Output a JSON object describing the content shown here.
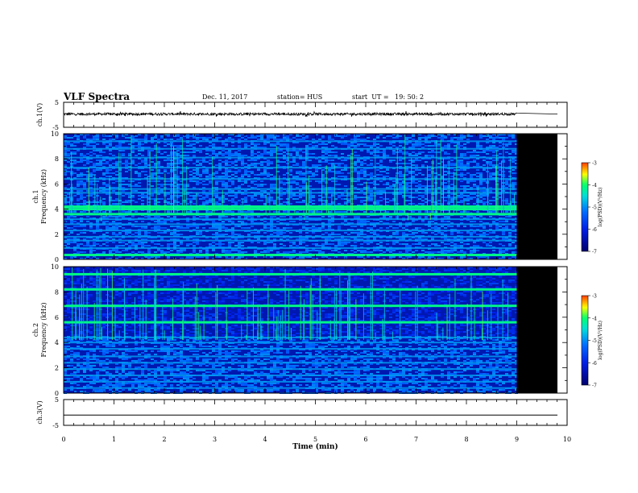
{
  "header": {
    "title": "VLF Spectra",
    "date": "Dec. 11, 2017",
    "station": "station= HUS",
    "start": "start  UT =   19: 50: 2"
  },
  "colorbar": {
    "label": "log(PSD)(V²/Hz)",
    "ticks": [
      "-3",
      "-4",
      "-5",
      "-6",
      "-7"
    ],
    "colors": [
      "#7a0000",
      "#ff0000",
      "#ff9a00",
      "#ffff00",
      "#00ff60",
      "#00e0e0",
      "#0060ff",
      "#0000c0",
      "#00007a"
    ]
  },
  "chart_data": [
    {
      "type": "line",
      "ylabel": "ch.1(V)",
      "ylim": [
        -5,
        5
      ],
      "yticks": [
        "5",
        "-5"
      ],
      "xlim": [
        0,
        10
      ],
      "description_series": "noise trace centered near 0 V until 9 min, flat line afterwards",
      "series": [
        {
          "level_before_9min": 0.3,
          "level_after_9min": 0.3
        }
      ]
    },
    {
      "type": "heatmap",
      "ylabel": "ch.1\nFrequency (kHz)",
      "ylabel_line1": "ch.1",
      "ylabel_line2": "Frequency (kHz)",
      "ylim": [
        0,
        10
      ],
      "yticks": [
        "10",
        "8",
        "6",
        "4",
        "2",
        "0"
      ],
      "xlim": [
        0,
        10
      ],
      "data_end_min": 9.0,
      "no_data_color": "#000000",
      "strong_bands_khz": [
        4.0,
        4.2,
        3.6,
        0.35
      ],
      "weak_bands_khz": [
        0.9,
        1.5,
        1.8,
        2.3,
        2.8,
        3.2,
        5.3,
        5.6,
        6.4,
        7.3,
        8.1,
        8.8,
        9.4
      ]
    },
    {
      "type": "heatmap",
      "ylabel": "ch.2\nFrequency (kHz)",
      "ylabel_line1": "ch.2",
      "ylabel_line2": "Frequency (kHz)",
      "ylim": [
        0,
        10
      ],
      "yticks": [
        "10",
        "8",
        "6",
        "4",
        "2",
        "0"
      ],
      "xlim": [
        0,
        10
      ],
      "data_end_min": 9.0,
      "no_data_color": "#000000",
      "strong_bands_khz": [
        5.6,
        6.9,
        8.2,
        9.4
      ],
      "weak_bands_khz": [
        0.4,
        0.9,
        1.4,
        1.9,
        2.4,
        2.9,
        3.5,
        4.0,
        4.4
      ]
    },
    {
      "type": "line",
      "ylabel": "ch.3(V)",
      "ylim": [
        -5,
        5
      ],
      "yticks": [
        "5",
        "-5"
      ],
      "xlim": [
        0,
        10
      ],
      "xlabel": "Time  (min)",
      "xticks": [
        "0",
        "1",
        "2",
        "3",
        "4",
        "5",
        "6",
        "7",
        "8",
        "9",
        "10"
      ],
      "series": [
        {
          "constant_value": -1.0
        }
      ]
    }
  ]
}
